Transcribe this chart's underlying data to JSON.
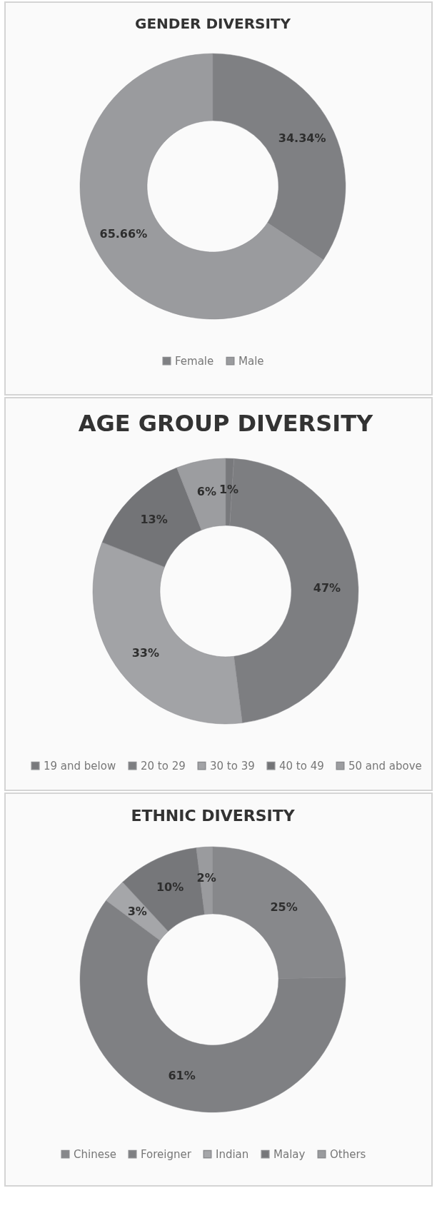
{
  "chart_data": [
    {
      "type": "donut",
      "title": "GENDER DIVERSITY",
      "categories": [
        "Female",
        "Male"
      ],
      "values": [
        34.34,
        65.66
      ],
      "value_labels": [
        "34.34%",
        "65.66%"
      ],
      "colors": [
        "#7f8083",
        "#9a9b9e"
      ],
      "legend": "bottom"
    },
    {
      "type": "donut",
      "title": "AGE GROUP DIVERSITY",
      "categories": [
        "19 and below",
        "20 to 29",
        "30 to 39",
        "40 to 49",
        "50 and above"
      ],
      "values": [
        1,
        47,
        33,
        13,
        6
      ],
      "value_labels": [
        "1%",
        "47%",
        "33%",
        "13%",
        "6%"
      ],
      "colors": [
        "#78797c",
        "#7d7e81",
        "#a2a3a6",
        "#737477",
        "#9c9da0"
      ],
      "legend": "bottom"
    },
    {
      "type": "donut",
      "title": "ETHNIC DIVERSITY",
      "categories": [
        "Chinese",
        "Foreigner",
        "Indian",
        "Malay",
        "Others"
      ],
      "values": [
        25,
        61,
        3,
        10,
        2
      ],
      "value_labels": [
        "25%",
        "61%",
        "3%",
        "10%",
        "2%"
      ],
      "colors": [
        "#87888b",
        "#7f8083",
        "#a5a6a9",
        "#76777a",
        "#9a9b9e"
      ],
      "legend": "bottom"
    }
  ]
}
